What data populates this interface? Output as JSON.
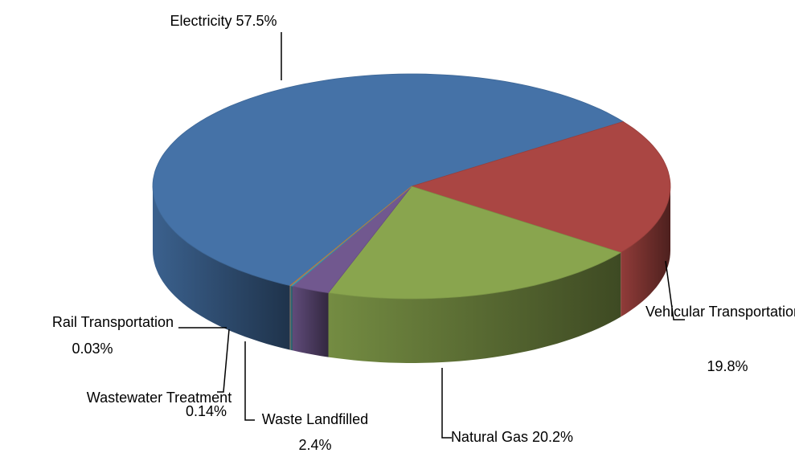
{
  "chart_data": {
    "type": "pie3d",
    "categories": [
      "Electricity",
      "Vehicular Transportation",
      "Natural Gas",
      "Waste Landfilled",
      "Wastewater Treatment",
      "Rail Transportation"
    ],
    "values": [
      57.5,
      19.8,
      20.2,
      2.4,
      0.14,
      0.03
    ],
    "value_labels": [
      "57.5%",
      "19.8%",
      "20.2%",
      "2.4%",
      "0.14%",
      "0.03%"
    ],
    "colors": [
      "#4572a7",
      "#aa4643",
      "#89a54e",
      "#71588f",
      "#4198af",
      "#db843d"
    ]
  }
}
